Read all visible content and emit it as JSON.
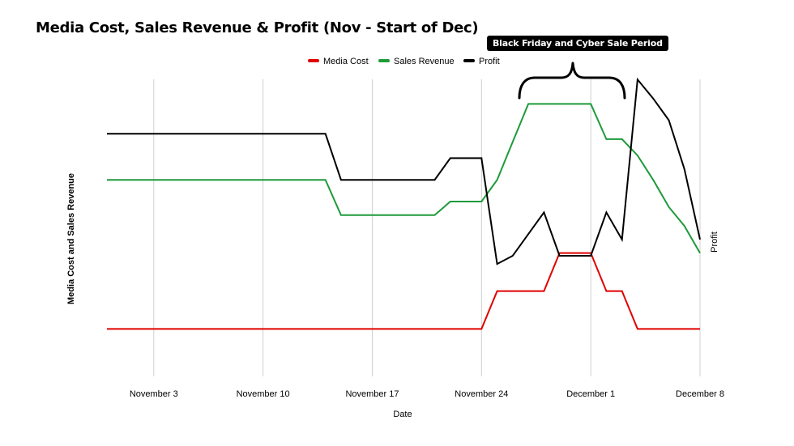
{
  "chart_data": {
    "type": "line",
    "title": "Media Cost, Sales Revenue & Profit (Nov - Start of Dec)",
    "xlabel": "Date",
    "ylabel": "Media Cost and Sales Revenue",
    "y2label": "Profit",
    "annotation": "Black Friday and Cyber Sale Period",
    "annotation_range": [
      "November 27",
      "December 3"
    ],
    "x_ticks": [
      "November 3",
      "November 10",
      "November 17",
      "November 24",
      "December 1",
      "December 8"
    ],
    "x_tick_days": [
      3,
      10,
      17,
      24,
      31,
      38
    ],
    "xlim": [
      0,
      38
    ],
    "ylim": [
      0,
      100
    ],
    "grid": "vertical",
    "legend_position": "top",
    "series": [
      {
        "name": "Media Cost",
        "color": "#e00000",
        "x": [
          0,
          24,
          25,
          27,
          28,
          29,
          30,
          31,
          32,
          33,
          34,
          38
        ],
        "y": [
          13,
          13,
          27,
          27,
          27,
          41,
          41,
          41,
          27,
          27,
          13,
          13
        ]
      },
      {
        "name": "Sales Revenue",
        "color": "#1e9a3a",
        "x": [
          0,
          14,
          15,
          16,
          21,
          22,
          23,
          24,
          25,
          26,
          27,
          28,
          29,
          30,
          31,
          32,
          33,
          34,
          35,
          36,
          37,
          38
        ],
        "y": [
          68,
          68,
          55,
          55,
          55,
          60,
          60,
          60,
          68,
          82,
          96,
          96,
          96,
          96,
          96,
          83,
          83,
          77,
          68,
          58,
          51,
          41
        ]
      },
      {
        "name": "Profit",
        "color": "#000000",
        "x": [
          0,
          14,
          15,
          16,
          21,
          22,
          23,
          24,
          25,
          26,
          27,
          28,
          29,
          30,
          31,
          32,
          33,
          34,
          35,
          36,
          37,
          38
        ],
        "y": [
          85,
          85,
          68,
          68,
          68,
          76,
          76,
          76,
          37,
          40,
          48,
          56,
          40,
          40,
          40,
          56,
          46,
          105,
          98,
          90,
          72,
          46
        ]
      }
    ]
  }
}
